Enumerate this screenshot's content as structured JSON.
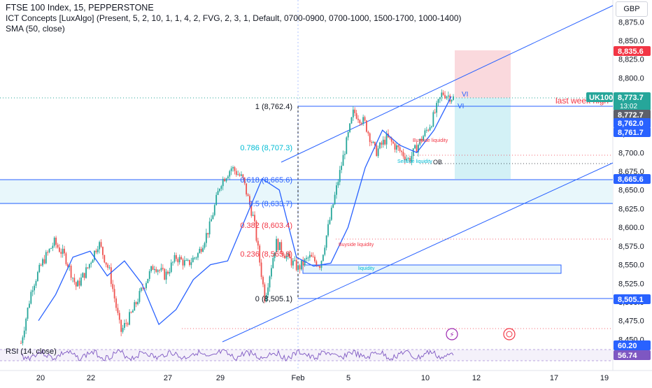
{
  "header": {
    "title": "FTSE 100 Index, 15, PEPPERSTONE",
    "indicator_1": "ICT Concepts [LuxAlgo] (Present, 5, 2, 10, 1, 1, 4, 2, FVG, 2, 3, 1, Default, 0700-0900, 0700-1000, 1500-1700, 1000-1400)",
    "indicator_2": "SMA (50, close)"
  },
  "currency": "GBP",
  "axis": {
    "y_ticks": [
      "8,875.0",
      "8,850.0",
      "8,825.0",
      "8,800.0",
      "8,775.0",
      "8,750.0",
      "8,725.0",
      "8,700.0",
      "8,675.0",
      "8,650.0",
      "8,625.0",
      "8,600.0",
      "8,575.0",
      "8,550.0",
      "8,525.0",
      "8,500.0",
      "8,475.0",
      "8,450.0"
    ],
    "x_ticks": [
      "20",
      "22",
      "27",
      "29",
      "Feb",
      "5",
      "10",
      "12",
      "17",
      "19"
    ]
  },
  "price_tags": {
    "target": {
      "value": "8,835.6",
      "color": "#f23645"
    },
    "symbol": "UK100",
    "current": "8,773.7",
    "countdown": "13:02",
    "last": "8,772.7",
    "level_blue_1": "8,762.0",
    "level_blue_2": "8,761.7",
    "level_blue_3": "8,665.6",
    "level_blue_4": "8,505.1",
    "rsi_1": "60.20",
    "rsi_2": "56.74"
  },
  "fib": {
    "f1": "1 (8,762.4)",
    "f786": "0.786 (8,707.3)",
    "f618": "0.618 (8,665.6)",
    "f5": "0.5 (8,633.7)",
    "f382": "0.382 (8,603.4)",
    "f236": "0.236 (8,565.8)",
    "f0": "0 (8,505.1)"
  },
  "annotations": {
    "vi_1": "VI",
    "vi_2": "VI",
    "last_week": "last week high",
    "buyside_1": "Buyside liquidity",
    "buyside_2": "Buyside liquidity",
    "sellside": "Sellside liquidity",
    "liquidity": "liquidity",
    "ob": "OB"
  },
  "rsi_label": "RSI (14, close)",
  "colors": {
    "up": "#26a69a",
    "down": "#ef5350",
    "sma": "#2962ff",
    "channel": "#2962ff",
    "fib_blue": "#2962ff",
    "fib_cyan": "#00bcd4",
    "fib_red": "#f23645",
    "rsi": "#7e57c2"
  },
  "chart_data": {
    "type": "candlestick",
    "title": "FTSE 100 Index, 15, PEPPERSTONE",
    "ylim": [
      8440,
      8890
    ],
    "x_labels": [
      "20",
      "22",
      "27",
      "29",
      "Feb",
      "5",
      "10",
      "12",
      "17",
      "19"
    ],
    "series": [
      {
        "name": "SMA (50, close)",
        "values": [
          8475,
          8510,
          8560,
          8568,
          8535,
          8555,
          8525,
          8470,
          8490,
          8530,
          8550,
          8555,
          8610,
          8665,
          8650,
          8560,
          8548,
          8552,
          8600,
          8680,
          8730,
          8710,
          8700,
          8730,
          8775
        ]
      }
    ],
    "price_path": [
      8445,
      8520,
      8555,
      8580,
      8560,
      8520,
      8545,
      8580,
      8540,
      8460,
      8485,
      8520,
      8550,
      8535,
      8560,
      8550,
      8565,
      8600,
      8660,
      8680,
      8665,
      8610,
      8505,
      8580,
      8560,
      8545,
      8560,
      8550,
      8620,
      8690,
      8755,
      8740,
      8700,
      8720,
      8705,
      8690,
      8715,
      8740,
      8780,
      8773
    ],
    "levels": {
      "fib_1": 8762.4,
      "fib_0786": 8707.3,
      "fib_0618": 8665.6,
      "fib_05": 8633.7,
      "fib_0382": 8603.4,
      "fib_0236": 8565.8,
      "fib_0": 8505.1,
      "target": 8835.6,
      "last": 8772.7
    }
  }
}
